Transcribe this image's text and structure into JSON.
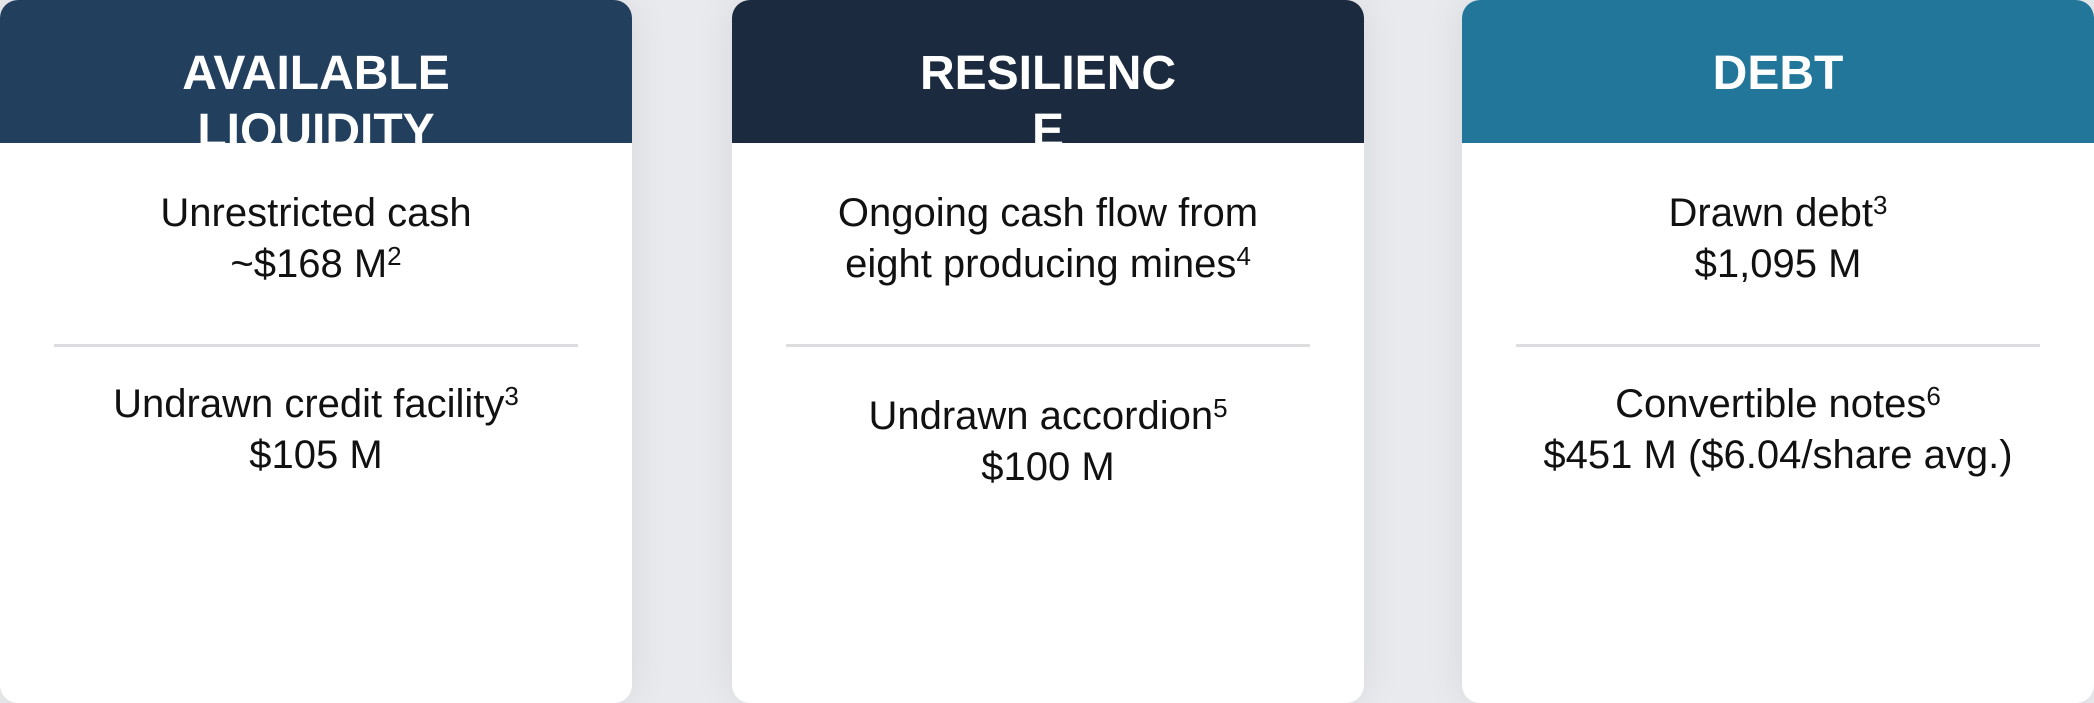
{
  "cards": [
    {
      "title": "AVAILABLE LIQUIDITY",
      "items": [
        {
          "label": "Unrestricted cash",
          "value": "~$168 M",
          "value_sup": "2"
        },
        {
          "label": "Undrawn credit facility",
          "label_sup": "3",
          "value": "$105 M"
        }
      ]
    },
    {
      "title": "RESILIENCE",
      "items": [
        {
          "label": "Ongoing cash flow from eight producing mines",
          "label_sup": "4"
        },
        {
          "label": "Undrawn accordion",
          "label_sup": "5",
          "value": "$100 M"
        }
      ]
    },
    {
      "title": "DEBT",
      "items": [
        {
          "label": "Drawn debt",
          "label_sup": "3",
          "value": "$1,095 M"
        },
        {
          "label": "Convertible notes",
          "label_sup": "6",
          "value": "$451 M ($6.04/share avg.)"
        }
      ]
    }
  ]
}
